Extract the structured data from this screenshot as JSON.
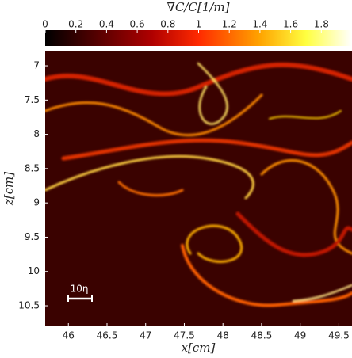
{
  "chart_data": {
    "type": "heatmap",
    "colorbar_label": "∇C/C[1/m]",
    "clim": [
      0,
      2
    ],
    "cticks": [
      0,
      0.2,
      0.4,
      0.6,
      0.8,
      1,
      1.2,
      1.4,
      1.6,
      1.8
    ],
    "xlabel": "x[cm]",
    "ylabel": "z[cm]",
    "xlim": [
      45.7,
      49.67
    ],
    "xticks": [
      46,
      46.5,
      47,
      47.5,
      48,
      48.5,
      49,
      49.5
    ],
    "ylim": [
      6.78,
      10.8
    ],
    "yticks": [
      7,
      7.5,
      8,
      8.5,
      9,
      9.5,
      10,
      10.5
    ],
    "y_inverted": true,
    "scale_bar_label": "10η"
  }
}
